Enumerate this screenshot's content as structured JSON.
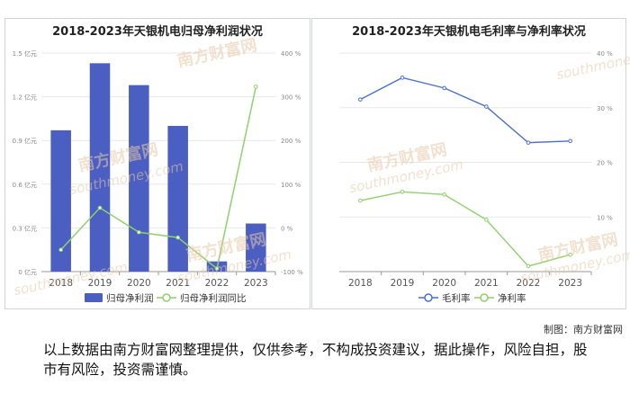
{
  "left_chart": {
    "title": "2018-2023年天银机电归母净利润状况"
  },
  "right_chart": {
    "title": "2018-2023年天银机电毛利率与净利率状况"
  },
  "watermark": {
    "brand": "南方财富网",
    "url": "southmoney.com"
  },
  "credit": "制图：南方财富网",
  "disclaimer": "以上数据由南方财富网整理提供，仅供参考，不构成投资建议，据此操作，风险自担，股市有风险，投资需谨慎。",
  "chart_data": [
    {
      "type": "bar",
      "title": "2018-2023年天银机电归母净利润状况",
      "categories": [
        "2018",
        "2019",
        "2020",
        "2021",
        "2022",
        "2023"
      ],
      "series": [
        {
          "name": "归母净利润",
          "type": "bar",
          "axis": "left",
          "color": "#4a5fc1",
          "values": [
            0.97,
            1.43,
            1.28,
            1.0,
            0.07,
            0.33
          ]
        },
        {
          "name": "归母净利润同比",
          "type": "line",
          "axis": "right",
          "color": "#8fd16a",
          "values": [
            -50,
            46,
            -10,
            -22,
            -93,
            323
          ]
        }
      ],
      "y_left": {
        "ylim": [
          0,
          1.5
        ],
        "ticks": [
          0,
          0.3,
          0.6,
          0.9,
          1.2,
          1.5
        ],
        "tick_labels": [
          "0 亿元",
          "0.3 亿元",
          "0.6 亿元",
          "0.9 亿元",
          "1.2 亿元",
          "1.5 亿元"
        ]
      },
      "y_right": {
        "ylim": [
          -100,
          400
        ],
        "ticks": [
          -100,
          0,
          100,
          200,
          300,
          400
        ],
        "tick_labels": [
          "-100 %",
          "0 %",
          "100 %",
          "200 %",
          "300 %",
          "400 %"
        ]
      },
      "grid": true,
      "legend": "bottom"
    },
    {
      "type": "line",
      "title": "2018-2023年天银机电毛利率与净利率状况",
      "categories": [
        "2018",
        "2019",
        "2020",
        "2021",
        "2022",
        "2023"
      ],
      "series": [
        {
          "name": "毛利率",
          "color": "#4a6fd0",
          "values": [
            31.5,
            35.5,
            33.6,
            30.2,
            23.6,
            23.9
          ]
        },
        {
          "name": "净利率",
          "color": "#8fd16a",
          "values": [
            13.0,
            14.6,
            14.1,
            9.5,
            1.0,
            3.1
          ]
        }
      ],
      "ylim": [
        0,
        40
      ],
      "ticks": [
        10,
        20,
        30,
        40
      ],
      "tick_labels": [
        "10 %",
        "20 %",
        "30 %",
        "40 %"
      ],
      "grid": true,
      "legend": "bottom"
    }
  ]
}
